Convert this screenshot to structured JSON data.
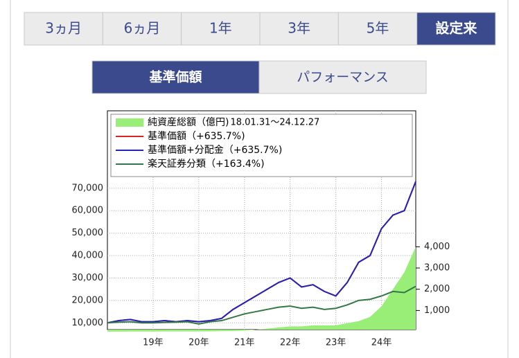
{
  "tabs": {
    "items": [
      "3ヵ月",
      "6ヵ月",
      "1年",
      "3年",
      "5年",
      "設定来"
    ],
    "selected": 5
  },
  "toggle": {
    "items": [
      "基準価額",
      "パフォーマンス"
    ],
    "selected": 0
  },
  "chart_data": {
    "type": "line",
    "period": "18.01.31〜24.12.27",
    "grid": true,
    "legend": "top-left",
    "categories": [
      null,
      null,
      null,
      null,
      "19年",
      null,
      null,
      null,
      "20年",
      null,
      null,
      null,
      "21年",
      null,
      null,
      null,
      "22年",
      null,
      null,
      null,
      "23年",
      null,
      null,
      null,
      "24年",
      null,
      null,
      null
    ],
    "series": [
      {
        "name": "純資産総額（億円)",
        "color": "#99ee77",
        "axis": "y2",
        "kind": "area",
        "values": [
          5,
          8,
          10,
          10,
          12,
          14,
          15,
          16,
          15,
          18,
          25,
          35,
          50,
          100,
          150,
          200,
          250,
          250,
          300,
          300,
          300,
          400,
          500,
          700,
          1200,
          2000,
          2800,
          4000
        ]
      },
      {
        "name": "基準価額（+635.7%)",
        "color": "#dd2222",
        "values": [
          10000,
          11000,
          11500,
          10500,
          10500,
          11000,
          10500,
          11000,
          10500,
          11000,
          12000,
          16000,
          19000,
          22000,
          25000,
          28000,
          30000,
          26000,
          27000,
          24000,
          22000,
          28000,
          37000,
          40000,
          52000,
          58000,
          60000,
          73000
        ]
      },
      {
        "name": "基準価額+分配金（+635.7%)",
        "color": "#2222bb",
        "values": [
          10000,
          11000,
          11500,
          10500,
          10500,
          11000,
          10500,
          11000,
          10500,
          11000,
          12000,
          16000,
          19000,
          22000,
          25000,
          28000,
          30000,
          26000,
          27000,
          24000,
          22000,
          28000,
          37000,
          40000,
          52000,
          58000,
          60000,
          73000
        ]
      },
      {
        "name": "楽天証券分類（+163.4%)",
        "color": "#337744",
        "values": [
          10000,
          10300,
          10500,
          10000,
          10000,
          10200,
          10300,
          10500,
          9500,
          10500,
          11000,
          12500,
          14000,
          15000,
          16000,
          17000,
          17500,
          16500,
          17000,
          16000,
          16500,
          18000,
          20000,
          20500,
          22000,
          24000,
          23500,
          26300
        ]
      }
    ],
    "ylim": [
      7000,
      104500
    ],
    "yticks": [
      {
        "value": 10000,
        "label": "10,000"
      },
      {
        "value": 20000,
        "label": "20,000"
      },
      {
        "value": 30000,
        "label": "30,000"
      },
      {
        "value": 40000,
        "label": "40,000"
      },
      {
        "value": 50000,
        "label": "50,000"
      },
      {
        "value": 60000,
        "label": "60,000"
      },
      {
        "value": 70000,
        "label": "70,000"
      }
    ],
    "y2lim": [
      100,
      10400
    ],
    "y2ticks": [
      {
        "value": 1000,
        "label": "1,000"
      },
      {
        "value": 2000,
        "label": "2,000"
      },
      {
        "value": 3000,
        "label": "3,000"
      },
      {
        "value": 4000,
        "label": "4,000"
      }
    ]
  }
}
